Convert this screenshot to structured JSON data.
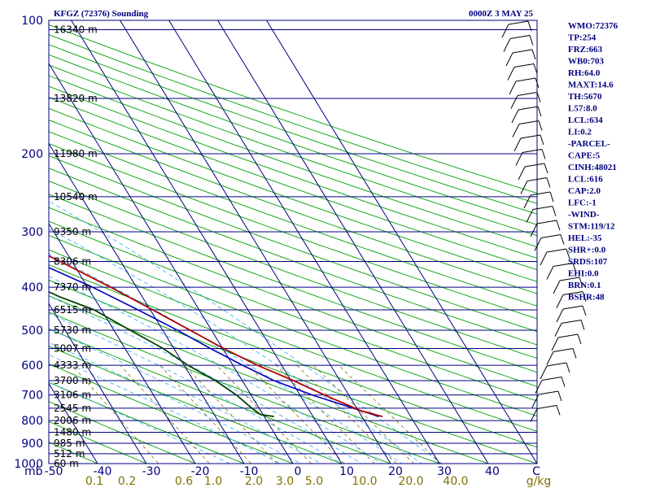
{
  "chart_data": {
    "type": "skewt",
    "title": "KFGZ (72376) Sounding",
    "valid_time": "0000Z  3 MAY 25",
    "pressure_levels": [
      100,
      200,
      300,
      400,
      500,
      600,
      700,
      800,
      900,
      1000
    ],
    "pressure_unit": "mb",
    "height_levels": [
      {
        "p": 105,
        "label": "16340 m"
      },
      {
        "p": 150,
        "label": "13820 m"
      },
      {
        "p": 200,
        "label": "11980 m"
      },
      {
        "p": 250,
        "label": "10540 m"
      },
      {
        "p": 300,
        "label": "9350 m"
      },
      {
        "p": 350,
        "label": "8306 m"
      },
      {
        "p": 400,
        "label": "7370 m"
      },
      {
        "p": 450,
        "label": "6515 m"
      },
      {
        "p": 500,
        "label": "5730 m"
      },
      {
        "p": 550,
        "label": "5007 m"
      },
      {
        "p": 600,
        "label": "4333 m"
      },
      {
        "p": 650,
        "label": "3700 m"
      },
      {
        "p": 700,
        "label": "3106 m"
      },
      {
        "p": 750,
        "label": "2545 m"
      },
      {
        "p": 800,
        "label": "2006 m"
      },
      {
        "p": 850,
        "label": "1480 m"
      },
      {
        "p": 900,
        "label": "985 m"
      },
      {
        "p": 950,
        "label": "512 m"
      },
      {
        "p": 1000,
        "label": "60 m"
      }
    ],
    "temp_ticks": [
      "-50",
      "-40",
      "-30",
      "-20",
      "-10",
      "0",
      "10",
      "20",
      "30",
      "40",
      "C"
    ],
    "mixing_ratio_ticks": [
      "0.1",
      "0.2",
      "0.6",
      "1.0",
      "2.0",
      "3.0",
      "5.0",
      "10.0",
      "20.0",
      "40.0",
      "g/kg"
    ],
    "xlim": [
      -50,
      50
    ],
    "ylim": [
      1000,
      100
    ],
    "temperature": [
      {
        "p": 783,
        "t": 24.2
      },
      {
        "p": 760,
        "t": 20.5
      },
      {
        "p": 700,
        "t": 15.0
      },
      {
        "p": 650,
        "t": 10.5
      },
      {
        "p": 600,
        "t": 5.0
      },
      {
        "p": 550,
        "t": 0.2
      },
      {
        "p": 500,
        "t": -4.4
      },
      {
        "p": 450,
        "t": -9.5
      },
      {
        "p": 400,
        "t": -15.3
      },
      {
        "p": 350,
        "t": -22.4
      },
      {
        "p": 300,
        "t": -31.2
      },
      {
        "p": 270,
        "t": -37.3
      },
      {
        "p": 250,
        "t": -40.9
      },
      {
        "p": 230,
        "t": -40.5
      },
      {
        "p": 200,
        "t": -42.0
      },
      {
        "p": 175,
        "t": -45.0
      },
      {
        "p": 150,
        "t": -49.5
      },
      {
        "p": 125,
        "t": -55.0
      },
      {
        "p": 100,
        "t": -61.0
      }
    ],
    "dewpoint": [
      {
        "p": 783,
        "t": 2.0
      },
      {
        "p": 775,
        "t": -0.5
      },
      {
        "p": 750,
        "t": -1.5
      },
      {
        "p": 700,
        "t": -3.0
      },
      {
        "p": 650,
        "t": -5.5
      },
      {
        "p": 600,
        "t": -9.2
      },
      {
        "p": 550,
        "t": -12.2
      },
      {
        "p": 500,
        "t": -16.7
      },
      {
        "p": 450,
        "t": -21.5
      },
      {
        "p": 420,
        "t": -27.0
      },
      {
        "p": 400,
        "t": -30.0
      },
      {
        "p": 350,
        "t": -33.0
      },
      {
        "p": 300,
        "t": -42.0
      },
      {
        "p": 270,
        "t": -48.4
      },
      {
        "p": 250,
        "t": -50.1
      },
      {
        "p": 220,
        "t": -53.0
      },
      {
        "p": 200,
        "t": -56.5
      },
      {
        "p": 175,
        "t": -60.0
      },
      {
        "p": 150,
        "t": -65.0
      },
      {
        "p": 125,
        "t": -69.5
      },
      {
        "p": 100,
        "t": -75.0
      }
    ],
    "parcel": [
      {
        "p": 783,
        "t": 23.5
      },
      {
        "p": 700,
        "t": 12.5
      },
      {
        "p": 650,
        "t": 6.5
      },
      {
        "p": 600,
        "t": 2.0
      },
      {
        "p": 550,
        "t": -2.5
      },
      {
        "p": 500,
        "t": -7.0
      },
      {
        "p": 450,
        "t": -12.5
      },
      {
        "p": 400,
        "t": -19.0
      },
      {
        "p": 350,
        "t": -27.5
      },
      {
        "p": 300,
        "t": -37.0
      },
      {
        "p": 250,
        "t": -50.0
      },
      {
        "p": 200,
        "t": -66.0
      },
      {
        "p": 150,
        "t": -86.0
      },
      {
        "p": 110,
        "t": -108.0
      }
    ]
  },
  "indices": [
    "WMO:72376",
    "TP:254",
    "FRZ:663",
    "WB0:703",
    "RH:64.0",
    "MAXT:14.6",
    "TH:5670",
    "L57:8.0",
    "LCL:634",
    "LI:0.2",
    "-PARCEL-",
    "CAPE:5",
    "CINH:48021",
    "LCL:616",
    "CAP:2.0",
    "LFC:-1",
    "-WIND-",
    "STM:119/12",
    "HEL:-35",
    "SHR+:0.0",
    "SRDS:107",
    "EHI:0.0",
    "BRN:0.1",
    "BSHR:48"
  ],
  "colors": {
    "frame": "#000080",
    "isobar": "#000080",
    "isotherm": "#000080",
    "dry_adiabat": "#00a000",
    "moist_adiabat": "#40b0ff",
    "mixing_ratio": "#807000",
    "temperature": "#b00000",
    "dewpoint": "#004000",
    "parcel": "#0000c0",
    "barb": "#000000"
  }
}
